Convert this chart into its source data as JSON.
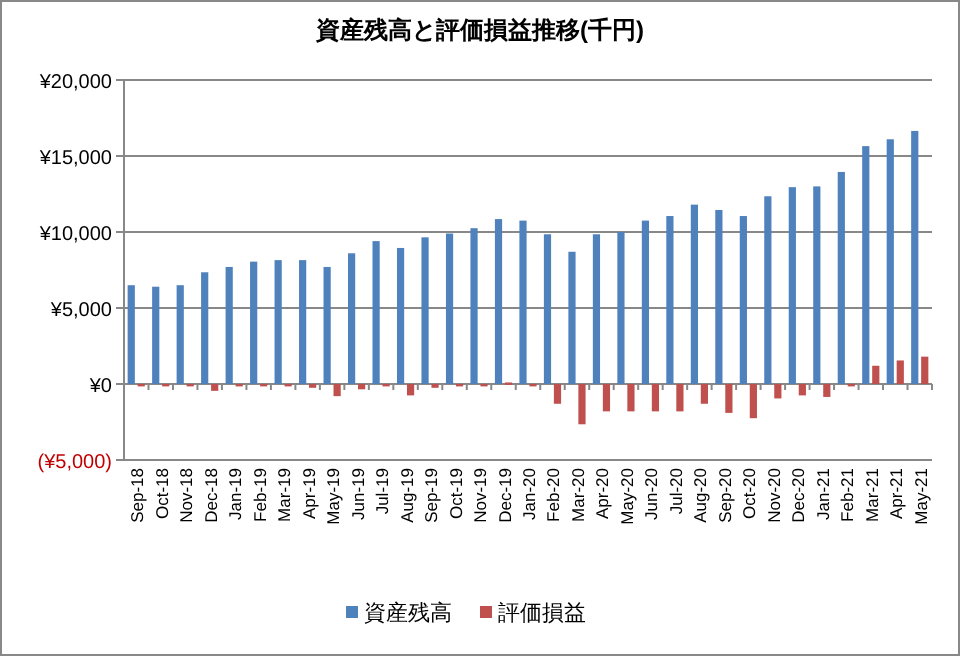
{
  "chart_data": {
    "type": "bar",
    "title": "資産残高と評価損益推移(千円)",
    "categories": [
      "Sep-18",
      "Oct-18",
      "Nov-18",
      "Dec-18",
      "Jan-19",
      "Feb-19",
      "Mar-19",
      "Apr-19",
      "May-19",
      "Jun-19",
      "Jul-19",
      "Aug-19",
      "Sep-19",
      "Oct-19",
      "Nov-19",
      "Dec-19",
      "Jan-20",
      "Feb-20",
      "Mar-20",
      "Apr-20",
      "May-20",
      "Jun-20",
      "Jul-20",
      "Aug-20",
      "Sep-20",
      "Oct-20",
      "Nov-20",
      "Dec-20",
      "Jan-21",
      "Feb-21",
      "Mar-21",
      "Apr-21",
      "May-21"
    ],
    "series": [
      {
        "name": "資産残高",
        "color": "#4f81bd",
        "values": [
          6500,
          6400,
          6500,
          7350,
          7700,
          8050,
          8150,
          8150,
          7700,
          8600,
          9400,
          8950,
          9650,
          9900,
          10250,
          10850,
          10750,
          9850,
          8700,
          9850,
          10000,
          10750,
          11050,
          11800,
          11450,
          11050,
          12350,
          12950,
          13000,
          13950,
          15650,
          16100,
          16650
        ]
      },
      {
        "name": "評価損益",
        "color": "#c0504d",
        "values": [
          0,
          -100,
          -100,
          -450,
          -100,
          0,
          -100,
          -250,
          -800,
          -350,
          -100,
          -750,
          -250,
          -100,
          0,
          100,
          -150,
          -1300,
          -2650,
          -1800,
          -1800,
          -1800,
          -1800,
          -1300,
          -1900,
          -2250,
          -950,
          -750,
          -850,
          -100,
          1200,
          1550,
          1800
        ]
      }
    ],
    "ylim": [
      -5000,
      20000
    ],
    "yticks": [
      {
        "value": -5000,
        "label": "(¥5,000)"
      },
      {
        "value": 0,
        "label": "¥0"
      },
      {
        "value": 5000,
        "label": "¥5,000"
      },
      {
        "value": 10000,
        "label": "¥10,000"
      },
      {
        "value": 15000,
        "label": "¥15,000"
      },
      {
        "value": 20000,
        "label": "¥20,000"
      }
    ],
    "grid": "y",
    "legend": "bottom"
  }
}
